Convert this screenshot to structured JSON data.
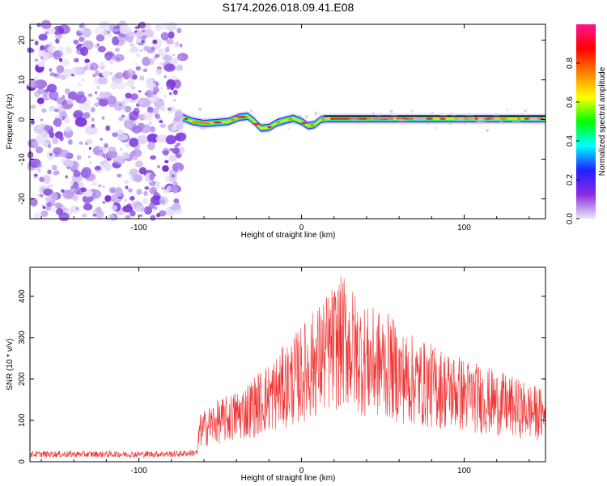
{
  "title": "S174.2026.018.09.41.E08",
  "chart_data": [
    {
      "type": "heatmap",
      "xlabel": "Height of straight line (km)",
      "ylabel": "Frequency (Hz)",
      "xlim": [
        -167,
        150
      ],
      "ylim": [
        -25,
        24
      ],
      "x_ticks": [
        -100,
        0,
        100
      ],
      "y_ticks": [
        -20,
        -10,
        0,
        10,
        20
      ],
      "grid": false,
      "noise_region_x": [
        -167,
        -73
      ],
      "ridge": {
        "description_points": [
          [
            -73,
            0.5
          ],
          [
            -67,
            -0.5
          ],
          [
            -60,
            -1.0
          ],
          [
            -53,
            -0.8
          ],
          [
            -45,
            -0.5
          ],
          [
            -38,
            0.6
          ],
          [
            -33,
            0.8
          ],
          [
            -29,
            -0.5
          ],
          [
            -25,
            -2.2
          ],
          [
            -20,
            -2.0
          ],
          [
            -15,
            -0.8
          ],
          [
            -10,
            -0.2
          ],
          [
            -5,
            0.3
          ],
          [
            0,
            -0.5
          ],
          [
            4,
            -1.6
          ],
          [
            8,
            -1.3
          ],
          [
            12,
            0.0
          ],
          [
            15,
            0.2
          ],
          [
            150,
            0.2
          ]
        ],
        "fit_line_start_x": 14
      },
      "colorbar": {
        "label": "Normalized spectral amplitude",
        "range": [
          0,
          1
        ],
        "ticks": [
          0.0,
          0.2,
          0.4,
          0.6,
          0.8
        ],
        "tick_labels": [
          "0.0",
          "0.2",
          "0.4",
          "0.6",
          "0.8"
        ],
        "colors": [
          "#e8e8f8",
          "#8a2be2",
          "#2020ff",
          "#00ffff",
          "#00ff00",
          "#ffff00",
          "#ff8000",
          "#ff0000",
          "#ff1493"
        ]
      }
    },
    {
      "type": "line",
      "xlabel": "Height of straight line (km)",
      "ylabel": "SNR (10 * v/v)",
      "xlim": [
        -167,
        150
      ],
      "ylim": [
        0,
        470
      ],
      "x_ticks": [
        -100,
        0,
        100
      ],
      "y_ticks": [
        0,
        100,
        200,
        300,
        400
      ],
      "grid": false,
      "series": [
        {
          "color": "#ee3333",
          "envelope_x": [
            -167,
            -140,
            -100,
            -75,
            -64,
            -63,
            -55,
            -45,
            -35,
            -25,
            -15,
            -5,
            5,
            15,
            22,
            27,
            32,
            40,
            50,
            56,
            62,
            75,
            95,
            110,
            130,
            150
          ],
          "envelope_y": [
            18,
            18,
            18,
            19,
            22,
            90,
            115,
            130,
            150,
            180,
            210,
            245,
            285,
            325,
            355,
            365,
            335,
            300,
            295,
            280,
            255,
            235,
            210,
            190,
            165,
            140
          ]
        }
      ]
    }
  ]
}
